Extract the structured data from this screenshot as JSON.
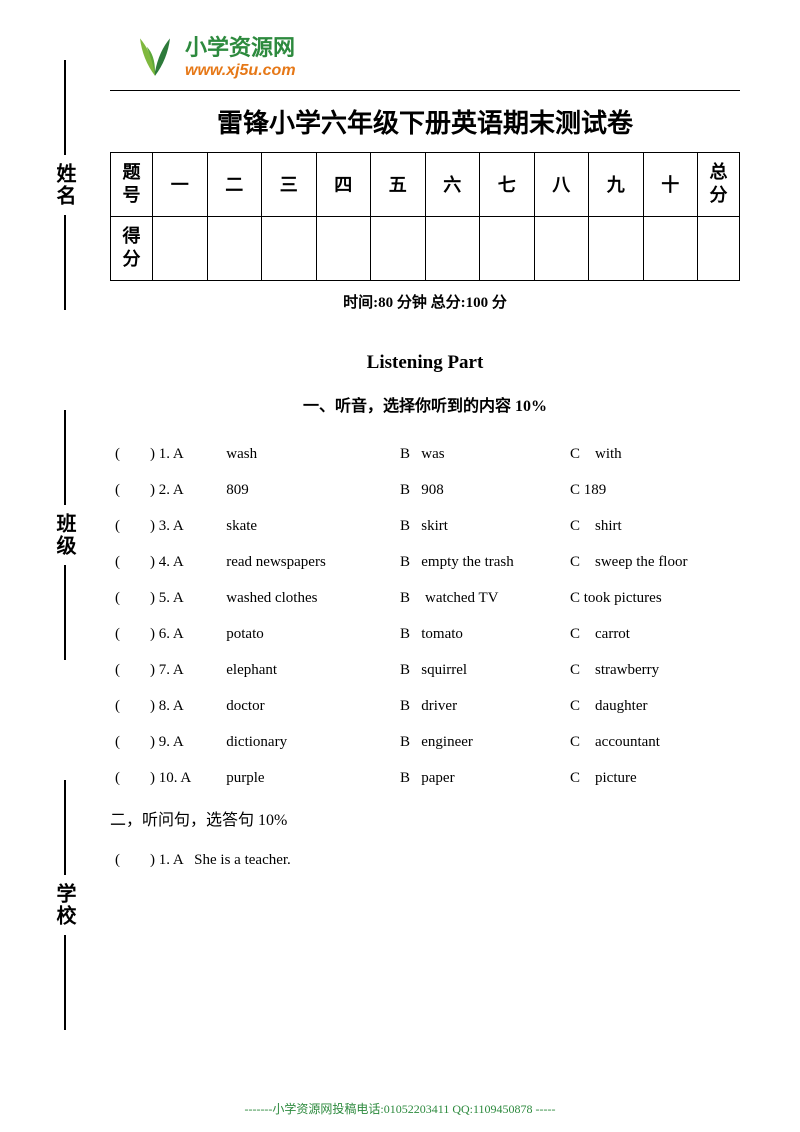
{
  "logo": {
    "cn": "小学资源网",
    "url": "www.xj5u.com",
    "leaf_color_left": "#7fb83e",
    "leaf_color_right": "#2d7a3a"
  },
  "title": "雷锋小学六年级下册英语期末测试卷",
  "score_table": {
    "row1_label": "题号",
    "row2_label": "得分",
    "cols": [
      "一",
      "二",
      "三",
      "四",
      "五",
      "六",
      "七",
      "八",
      "九",
      "十"
    ],
    "total_label": "总分"
  },
  "time_info": "时间:80 分钟      总分:100 分",
  "listening_title": "Listening Part",
  "section1_title": "一、听音，选择你听到的内容  10%",
  "questions1": [
    {
      "n": "(        ) 1. A",
      "a": "wash",
      "b": "B   was",
      "c": "C    with"
    },
    {
      "n": "(        ) 2. A",
      "a": "809",
      "b": "B   908",
      "c": "C 189"
    },
    {
      "n": "(        ) 3. A",
      "a": "skate",
      "b": "B   skirt",
      "c": "C    shirt"
    },
    {
      "n": "(        ) 4. A",
      "a": "read newspapers",
      "b": "B   empty the trash",
      "c": "C    sweep the floor"
    },
    {
      "n": "(        ) 5. A",
      "a": "washed clothes",
      "b": "B    watched TV",
      "c": "C took pictures"
    },
    {
      "n": "(        ) 6. A",
      "a": "potato",
      "b": "B   tomato",
      "c": "C    carrot"
    },
    {
      "n": "(        ) 7. A",
      "a": "elephant",
      "b": "B   squirrel",
      "c": "C    strawberry"
    },
    {
      "n": "(        ) 8. A",
      "a": "doctor",
      "b": "B   driver",
      "c": "C    daughter"
    },
    {
      "n": "(        ) 9. A",
      "a": "dictionary",
      "b": "B   engineer",
      "c": "C    accountant"
    },
    {
      "n": "(        ) 10. A",
      "a": "purple",
      "b": "B   paper",
      "c": "C    picture"
    }
  ],
  "section2_title": "二，听问句，选答句 10%",
  "question2_1": "(        ) 1. A   She is a teacher.",
  "side": {
    "name": "姓名",
    "class": "班级",
    "school": "学校"
  },
  "footer": "-------小学资源网投稿电话:01052203411        QQ:1109450878 -----"
}
